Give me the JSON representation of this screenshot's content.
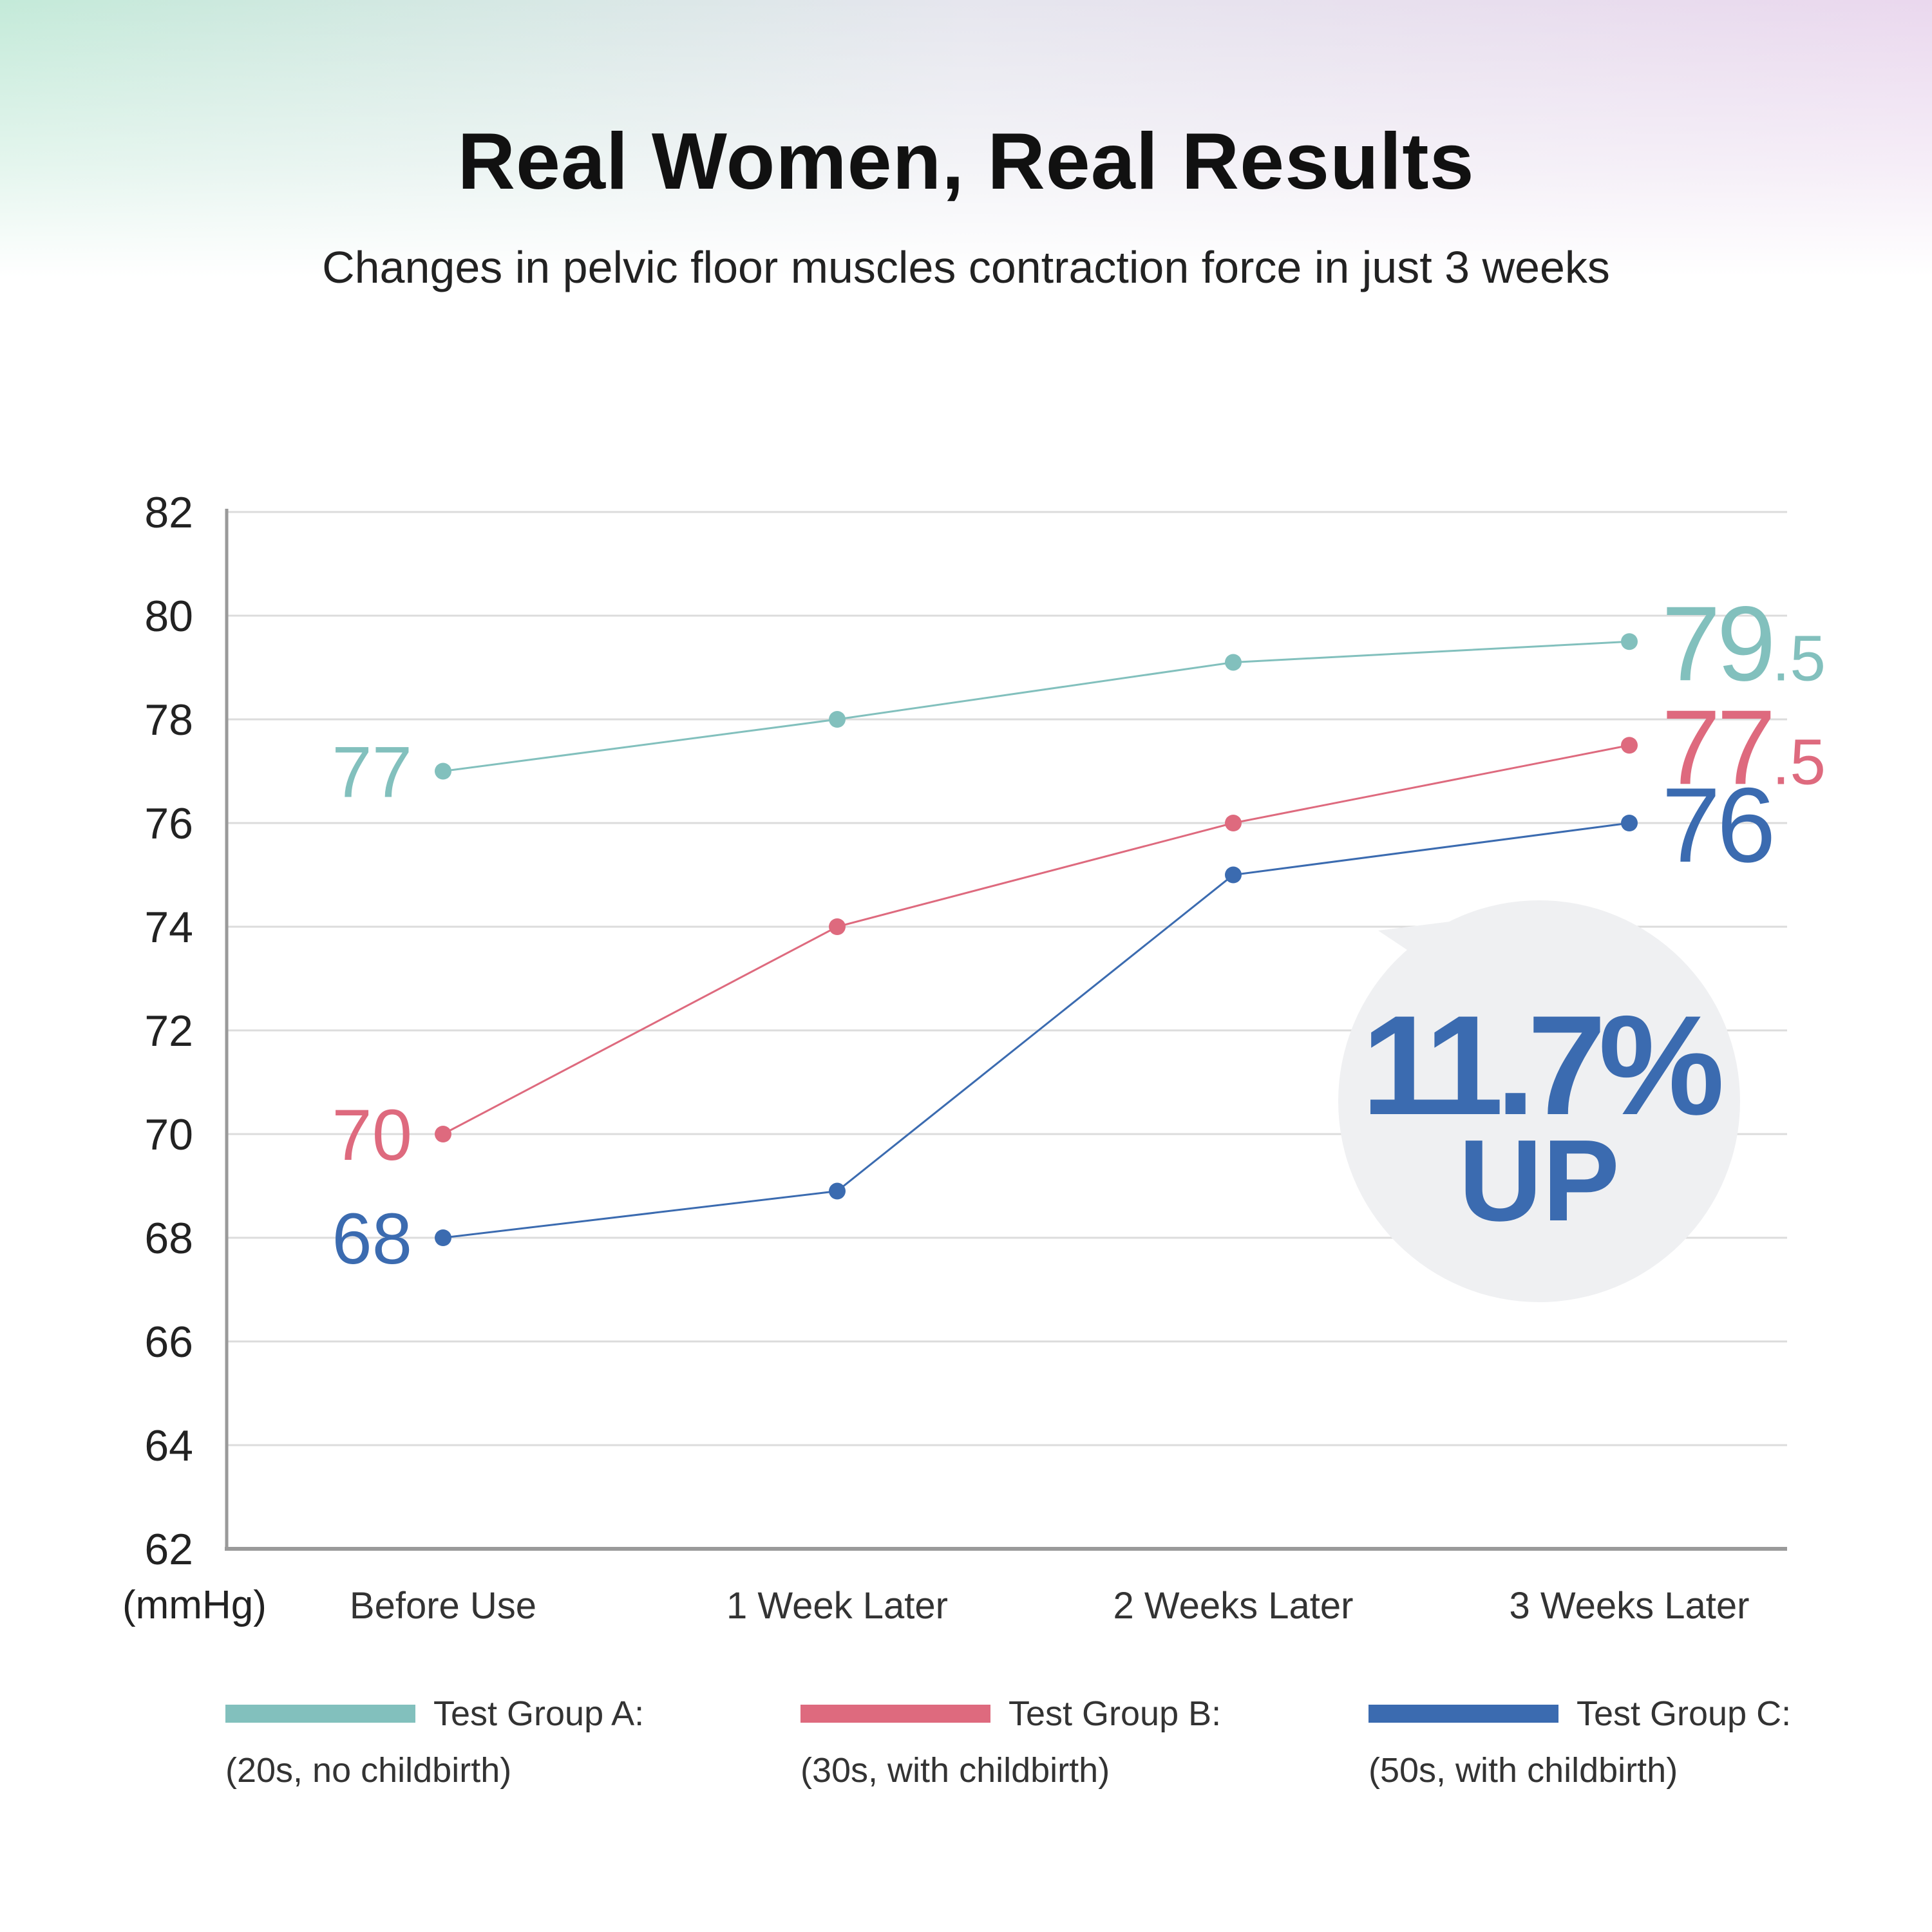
{
  "header": {
    "title": "Real Women, Real Results",
    "subtitle": "Changes in pelvic floor muscles contraction force in just 3 weeks"
  },
  "colors": {
    "group_a": "#82c0bd",
    "group_b": "#de6a7e",
    "group_c": "#3b6bb0",
    "grid": "#dcdcdc",
    "axis": "#9a9a9a",
    "callout_bg": "#eff0f2"
  },
  "chart_data": {
    "type": "line",
    "categories": [
      "Before Use",
      "1 Week Later",
      "2 Weeks Later",
      "3 Weeks Later"
    ],
    "ylim": [
      62,
      82
    ],
    "yticks": [
      "62",
      "64",
      "66",
      "68",
      "70",
      "72",
      "74",
      "76",
      "78",
      "80",
      "82"
    ],
    "ylabel": "(mmHg)",
    "grid": true,
    "series": [
      {
        "name": "Test Group A:",
        "description": "(20s, no childbirth)",
        "values": [
          77,
          78,
          79.1,
          79.5
        ],
        "start_label": "77",
        "end_label_int": "79",
        "end_label_dec": ".5"
      },
      {
        "name": "Test Group B:",
        "description": "(30s, with childbirth)",
        "values": [
          70,
          74,
          76,
          77.5
        ],
        "start_label": "70",
        "end_label_int": "77",
        "end_label_dec": ".5"
      },
      {
        "name": "Test Group C:",
        "description": "(50s, with childbirth)",
        "values": [
          68,
          68.9,
          75,
          76
        ],
        "start_label": "68",
        "end_label_int": "76",
        "end_label_dec": ""
      }
    ],
    "callout": {
      "value": "11.7%",
      "label": "UP"
    },
    "legend_position": "bottom"
  }
}
